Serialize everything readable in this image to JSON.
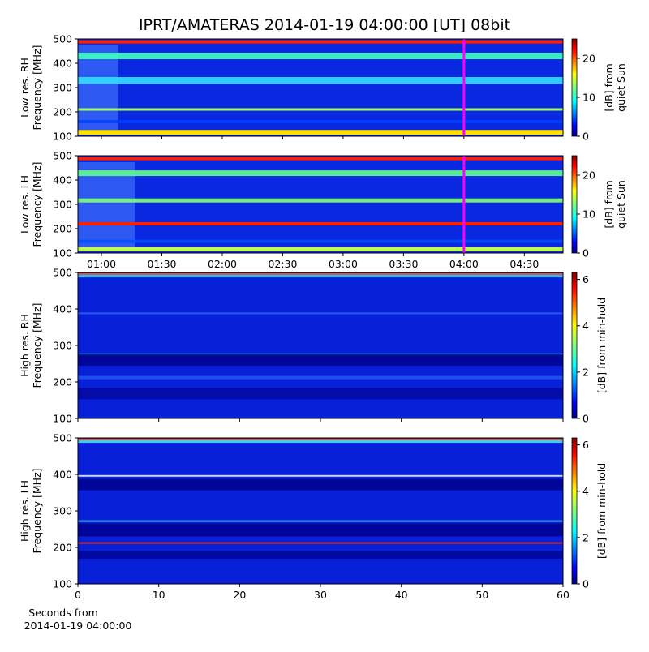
{
  "title": "IPRT/AMATERAS 2014-01-19 04:00:00 [UT]   08bit",
  "chart_data": [
    {
      "type": "heatmap",
      "ylabel": [
        "Low res. RH",
        "Frequency [MHz]"
      ],
      "ylim": [
        100,
        500
      ],
      "yticks": [
        100,
        200,
        300,
        400,
        500
      ],
      "xlim": [
        0.805,
        4.82
      ],
      "xticks": [
        1,
        1.5,
        2,
        2.5,
        3,
        3.5,
        4,
        4.5
      ],
      "xticklabels": false,
      "marker": {
        "x": 4,
        "color": "#ff00ff"
      },
      "colorbar": {
        "label": [
          "[dB] from",
          "quiet Sun"
        ],
        "lim": [
          0,
          25
        ],
        "ticks": [
          0,
          10,
          20
        ],
        "colormap": "jet"
      }
    },
    {
      "type": "heatmap",
      "ylabel": [
        "Low res. LH",
        "Frequency [MHz]"
      ],
      "ylim": [
        100,
        500
      ],
      "yticks": [
        100,
        200,
        300,
        400,
        500
      ],
      "xlim": [
        0.805,
        4.82
      ],
      "xticks": [
        {
          "value": 1,
          "label": "01:00"
        },
        {
          "value": 1.5,
          "label": "01:30"
        },
        {
          "value": 2,
          "label": "02:00"
        },
        {
          "value": 2.5,
          "label": "02:30"
        },
        {
          "value": 3,
          "label": "03:00"
        },
        {
          "value": 3.5,
          "label": "03:30"
        },
        {
          "value": 4,
          "label": "04:00"
        },
        {
          "value": 4.5,
          "label": "04:30"
        }
      ],
      "marker": {
        "x": 4,
        "color": "#ff00ff"
      },
      "colorbar": {
        "label": [
          "[dB] from",
          "quiet Sun"
        ],
        "lim": [
          0,
          25
        ],
        "ticks": [
          0,
          10,
          20
        ],
        "colormap": "jet"
      }
    },
    {
      "type": "heatmap",
      "ylabel": [
        "High res. RH",
        "Frequency [MHz]"
      ],
      "ylim": [
        100,
        500
      ],
      "yticks": [
        100,
        200,
        300,
        400,
        500
      ],
      "xlim": [
        0,
        60
      ],
      "xticks": [
        0,
        10,
        20,
        30,
        40,
        50,
        60
      ],
      "xticklabels": false,
      "colorbar": {
        "label": [
          "[dB] from min-hold"
        ],
        "lim": [
          0,
          6.3
        ],
        "ticks": [
          0,
          2,
          4,
          6
        ],
        "colormap": "jet"
      }
    },
    {
      "type": "heatmap",
      "ylabel": [
        "High res. LH",
        "Frequency [MHz]"
      ],
      "ylim": [
        100,
        500
      ],
      "yticks": [
        100,
        200,
        300,
        400,
        500
      ],
      "xlim": [
        0,
        60
      ],
      "xticks": [
        0,
        10,
        20,
        30,
        40,
        50,
        60
      ],
      "xlabel": [
        "Seconds from",
        "2014-01-19 04:00:00"
      ],
      "colorbar": {
        "label": [
          "[dB] from min-hold"
        ],
        "lim": [
          0,
          6.3
        ],
        "ticks": [
          0,
          2,
          4,
          6
        ],
        "colormap": "jet"
      }
    }
  ]
}
